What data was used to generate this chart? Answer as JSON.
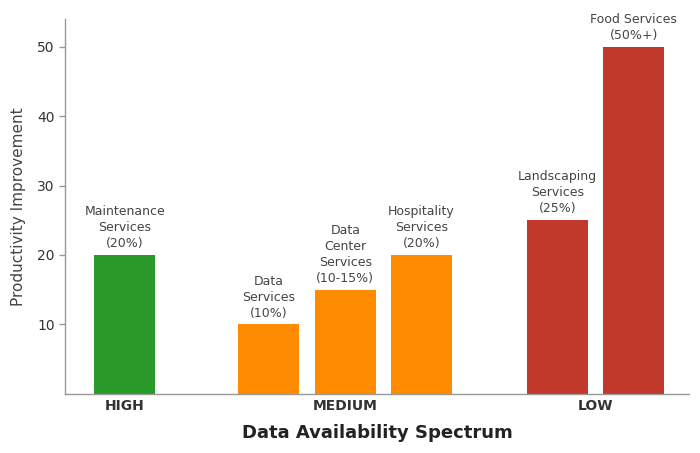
{
  "bars": [
    {
      "label": "Maintenance\nServices\n(20%)",
      "value": 20,
      "color": "#2a9a2a",
      "group": "HIGH",
      "x": 1.0
    },
    {
      "label": "Data\nServices\n(10%)",
      "value": 10,
      "color": "#ff8c00",
      "group": "MEDIUM",
      "x": 2.7
    },
    {
      "label": "Data\nCenter\nServices\n(10-15%)",
      "value": 15,
      "color": "#ff8c00",
      "group": "MEDIUM",
      "x": 3.6
    },
    {
      "label": "Hospitality\nServices\n(20%)",
      "value": 20,
      "color": "#ff8c00",
      "group": "MEDIUM",
      "x": 4.5
    },
    {
      "label": "Landscaping\nServices\n(25%)",
      "value": 25,
      "color": "#c0392b",
      "group": "LOW",
      "x": 6.1
    },
    {
      "label": "Food Services\n(50%+)",
      "value": 50,
      "color": "#c0392b",
      "group": "LOW",
      "x": 7.0
    }
  ],
  "bar_width": 0.72,
  "group_labels": [
    "HIGH",
    "MEDIUM",
    "LOW"
  ],
  "group_positions": [
    1.0,
    3.6,
    6.55
  ],
  "xlabel": "Data Availability Spectrum",
  "ylabel": "Productivity Improvement",
  "ylim": [
    0,
    54
  ],
  "yticks": [
    10,
    20,
    30,
    40,
    50
  ],
  "xlabel_fontsize": 13,
  "ylabel_fontsize": 11,
  "annotation_fontsize": 9,
  "group_label_fontsize": 10,
  "tick_label_fontsize": 10,
  "background_color": "#ffffff",
  "spine_color": "#999999",
  "text_color": "#444444"
}
